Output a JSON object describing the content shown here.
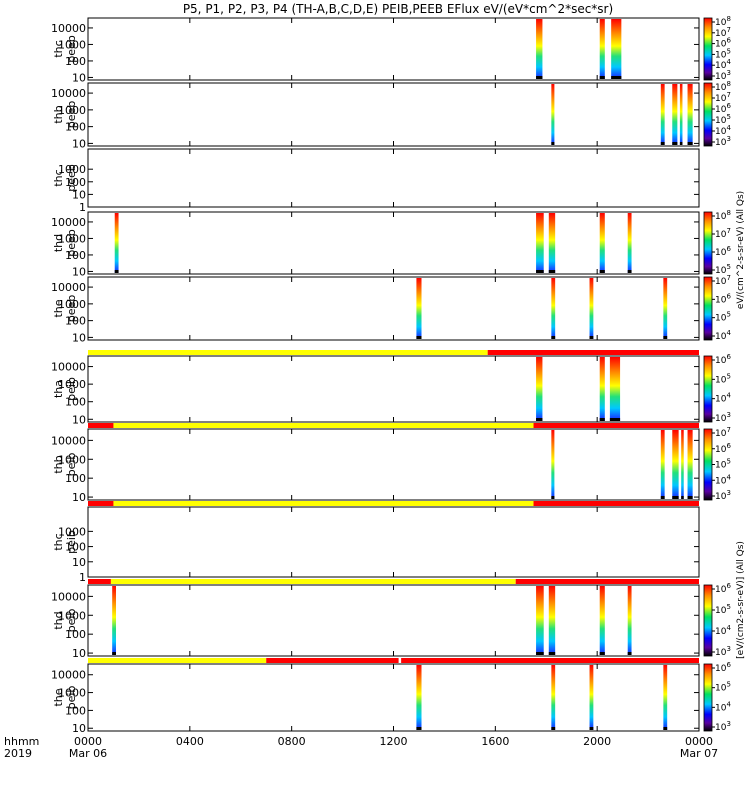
{
  "chart_data": {
    "type": "heatmap",
    "title": "P5, P1, P2, P3, P4 (TH-A,B,C,D,E) PEIB,PEEB EFlux eV/(eV*cm^2*sec*sr)",
    "time_axis": {
      "row1_label": "hhmm",
      "row2_label": "2019",
      "ticks": [
        {
          "t": 0,
          "label": "0000",
          "date": "Mar 06"
        },
        {
          "t": 4,
          "label": "0400",
          "date": ""
        },
        {
          "t": 8,
          "label": "0800",
          "date": ""
        },
        {
          "t": 12,
          "label": "1200",
          "date": ""
        },
        {
          "t": 16,
          "label": "1600",
          "date": ""
        },
        {
          "t": 20,
          "label": "2000",
          "date": ""
        },
        {
          "t": 24,
          "label": "0000",
          "date": "Mar 07"
        }
      ],
      "range_hours": [
        0,
        24
      ]
    },
    "y_scale": "log",
    "colorbar_titles": {
      "peeb": "eV/(cm^2-s-sr-eV) (All Qs)",
      "peib": "[eV/(cm2-s-sr-eV)] (All Qs)"
    },
    "panels": [
      {
        "probe": "thc",
        "type": "peeb",
        "ylim": [
          7,
          40000
        ],
        "yticks": [
          "10",
          "100",
          "1000",
          "10000"
        ],
        "cbar_ticks": [
          "10^3",
          "10^4",
          "10^5",
          "10^6",
          "10^7",
          "10^8"
        ],
        "status_bar": null,
        "bursts": [
          [
            17.6,
            17.85
          ],
          [
            20.1,
            20.3
          ],
          [
            20.55,
            20.95
          ]
        ]
      },
      {
        "probe": "thb",
        "type": "peeb",
        "ylim": [
          7,
          40000
        ],
        "yticks": [
          "10",
          "100",
          "1000",
          "10000"
        ],
        "cbar_ticks": [
          "10^3",
          "10^4",
          "10^5",
          "10^6",
          "10^7",
          "10^8"
        ],
        "status_bar": null,
        "bursts": [
          [
            18.2,
            18.32
          ],
          [
            22.5,
            22.65
          ],
          [
            22.95,
            23.15
          ],
          [
            23.25,
            23.35
          ],
          [
            23.55,
            23.75
          ]
        ]
      },
      {
        "probe": "thc",
        "type": "peeb",
        "ylim": [
          1,
          40000
        ],
        "yticks": [
          "1",
          "10",
          "100",
          "1000"
        ],
        "cbar_ticks": [],
        "status_bar": null,
        "bursts": []
      },
      {
        "probe": "thd",
        "type": "peeb",
        "ylim": [
          7,
          40000
        ],
        "yticks": [
          "10",
          "100",
          "1000",
          "10000"
        ],
        "cbar_ticks": [
          "10^5",
          "10^6",
          "10^7",
          "10^8"
        ],
        "status_bar": null,
        "bursts": [
          [
            1.05,
            1.2
          ],
          [
            17.6,
            17.9
          ],
          [
            18.1,
            18.35
          ],
          [
            20.1,
            20.3
          ],
          [
            21.2,
            21.35
          ]
        ]
      },
      {
        "probe": "the",
        "type": "peeb",
        "ylim": [
          7,
          40000
        ],
        "yticks": [
          "10",
          "100",
          "1000",
          "10000"
        ],
        "cbar_ticks": [
          "10^4",
          "10^5",
          "10^6",
          "10^7"
        ],
        "status_bar": null,
        "bursts": [
          [
            12.9,
            13.1
          ],
          [
            18.2,
            18.35
          ],
          [
            19.7,
            19.85
          ],
          [
            22.6,
            22.75
          ]
        ]
      },
      {
        "probe": "tha",
        "type": "peib",
        "ylim": [
          7,
          40000
        ],
        "yticks": [
          "10",
          "100",
          "1000",
          "10000"
        ],
        "cbar_ticks": [
          "10^3",
          "10^4",
          "10^5",
          "10^6"
        ],
        "status_bar": [
          [
            "yellow",
            0,
            15.7
          ],
          [
            "red",
            15.7,
            24
          ]
        ],
        "bursts": [
          [
            17.6,
            17.85
          ],
          [
            20.1,
            20.3
          ],
          [
            20.5,
            20.9
          ]
        ]
      },
      {
        "probe": "thb",
        "type": "peib",
        "ylim": [
          7,
          40000
        ],
        "yticks": [
          "10",
          "100",
          "1000",
          "10000"
        ],
        "cbar_ticks": [
          "10^3",
          "10^4",
          "10^5",
          "10^6",
          "10^7"
        ],
        "status_bar": [
          [
            "red",
            0,
            1.0
          ],
          [
            "yellow",
            1.0,
            17.5
          ],
          [
            "red",
            17.5,
            24
          ]
        ],
        "bursts": [
          [
            18.2,
            18.32
          ],
          [
            22.5,
            22.65
          ],
          [
            22.95,
            23.2
          ],
          [
            23.3,
            23.4
          ],
          [
            23.55,
            23.75
          ]
        ]
      },
      {
        "probe": "thc",
        "type": "peib",
        "ylim": [
          1,
          40000
        ],
        "yticks": [
          "1",
          "10",
          "100",
          "1000"
        ],
        "cbar_ticks": [],
        "status_bar": [
          [
            "red",
            0,
            1.0
          ],
          [
            "yellow",
            1.0,
            17.5
          ],
          [
            "red",
            17.5,
            24
          ]
        ],
        "bursts": []
      },
      {
        "probe": "thd",
        "type": "peib",
        "ylim": [
          7,
          40000
        ],
        "yticks": [
          "10",
          "100",
          "1000",
          "10000"
        ],
        "cbar_ticks": [
          "10^3",
          "10^4",
          "10^5",
          "10^6"
        ],
        "status_bar": [
          [
            "red",
            0,
            0.9
          ],
          [
            "yellow",
            0.9,
            16.8
          ],
          [
            "red",
            16.8,
            24
          ]
        ],
        "bursts": [
          [
            0.95,
            1.1
          ],
          [
            17.6,
            17.9
          ],
          [
            18.1,
            18.35
          ],
          [
            20.1,
            20.3
          ],
          [
            21.2,
            21.35
          ]
        ]
      },
      {
        "probe": "the",
        "type": "peib",
        "ylim": [
          7,
          40000
        ],
        "yticks": [
          "10",
          "100",
          "1000",
          "10000"
        ],
        "cbar_ticks": [
          "10^3",
          "10^4",
          "10^5",
          "10^6"
        ],
        "status_bar": [
          [
            "yellow",
            0,
            7.0
          ],
          [
            "red",
            7.0,
            12.2
          ],
          [
            "red",
            12.3,
            24
          ]
        ],
        "bursts": [
          [
            12.9,
            13.1
          ],
          [
            18.2,
            18.35
          ],
          [
            19.7,
            19.85
          ],
          [
            22.6,
            22.75
          ]
        ]
      }
    ]
  }
}
